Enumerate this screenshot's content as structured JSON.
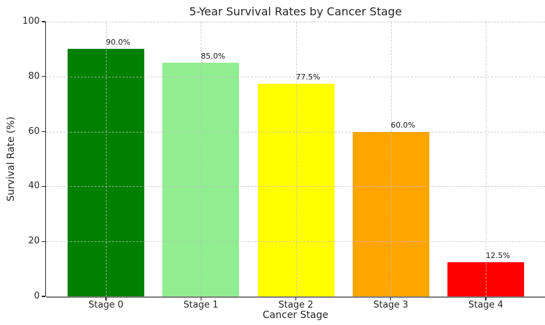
{
  "chart_data": {
    "type": "bar",
    "title": "5-Year Survival Rates by Cancer Stage",
    "xlabel": "Cancer Stage",
    "ylabel": "Survival Rate (%)",
    "categories": [
      "Stage 0",
      "Stage 1",
      "Stage 2",
      "Stage 3",
      "Stage 4"
    ],
    "values": [
      90.0,
      85.0,
      77.5,
      60.0,
      12.5
    ],
    "bar_labels": [
      "90.0%",
      "85.0%",
      "77.5%",
      "60.0%",
      "12.5%"
    ],
    "bar_colors": [
      "#008000",
      "#90EE90",
      "#FFFF00",
      "#FFA500",
      "#FF0000"
    ],
    "ylim": [
      0,
      100
    ],
    "yticks": [
      0,
      20,
      40,
      60,
      80,
      100
    ],
    "grid": "both, dashed, light-gray, drawn over bars",
    "legend": "none",
    "background_color": "#ffffff"
  }
}
